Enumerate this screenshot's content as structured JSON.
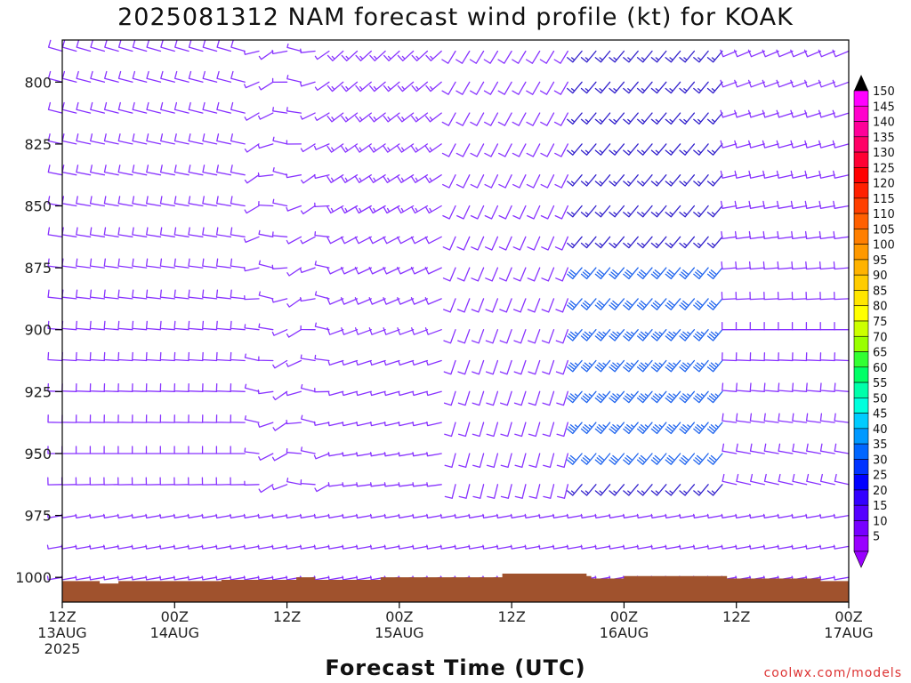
{
  "chart_data": {
    "type": "wind-barb profile",
    "title": "2025081312 NAM forecast wind profile (kt) for KOAK",
    "xlabel": "Forecast Time (UTC)",
    "ylabel": "",
    "credit": "coolwx.com/models",
    "y_axis": {
      "ticks": [
        "800",
        "825",
        "850",
        "875",
        "900",
        "925",
        "950",
        "975",
        "1000"
      ],
      "range_hpa": [
        1010,
        783
      ]
    },
    "x_axis": {
      "ticks": [
        {
          "line1": "12Z",
          "line2": "13AUG",
          "line3": "2025"
        },
        {
          "line1": "00Z",
          "line2": "14AUG",
          "line3": ""
        },
        {
          "line1": "12Z",
          "line2": "",
          "line3": ""
        },
        {
          "line1": "00Z",
          "line2": "15AUG",
          "line3": ""
        },
        {
          "line1": "12Z",
          "line2": "",
          "line3": ""
        },
        {
          "line1": "00Z",
          "line2": "16AUG",
          "line3": ""
        },
        {
          "line1": "12Z",
          "line2": "",
          "line3": ""
        },
        {
          "line1": "00Z",
          "line2": "17AUG",
          "line3": ""
        }
      ],
      "range_hours": [
        0,
        84
      ]
    },
    "pressure_levels_hpa": [
      787.5,
      800,
      812.5,
      825,
      837.5,
      850,
      862.5,
      875,
      887.5,
      900,
      912.5,
      925,
      937.5,
      950,
      962.5,
      975,
      987.5,
      1000
    ],
    "time_step_hours": 1.5,
    "colorbar": {
      "labels": [
        "150",
        "145",
        "140",
        "135",
        "130",
        "125",
        "120",
        "115",
        "110",
        "105",
        "100",
        "95",
        "90",
        "85",
        "80",
        "75",
        "70",
        "65",
        "60",
        "55",
        "50",
        "45",
        "40",
        "35",
        "30",
        "25",
        "20",
        "15",
        "10",
        "5"
      ],
      "colors": [
        "#ff00ff",
        "#ff00cc",
        "#ff0099",
        "#ff0066",
        "#ff0033",
        "#ff0000",
        "#ff2000",
        "#ff4000",
        "#ff6000",
        "#ff7f00",
        "#ff9900",
        "#ffb300",
        "#ffcc00",
        "#ffe600",
        "#ffff00",
        "#ccff00",
        "#99ff00",
        "#33ff33",
        "#00ff66",
        "#00ffaa",
        "#00ffdd",
        "#00ccff",
        "#0099ff",
        "#0066ff",
        "#0033ff",
        "#0000ff",
        "#3300ff",
        "#5500ff",
        "#7700ff",
        "#9900ff"
      ]
    },
    "terrain_color": "#a0522d",
    "barb_color_light": "#8833ff",
    "barb_color_moderate": "#3322cc",
    "barb_color_strong": "#2266ee"
  }
}
